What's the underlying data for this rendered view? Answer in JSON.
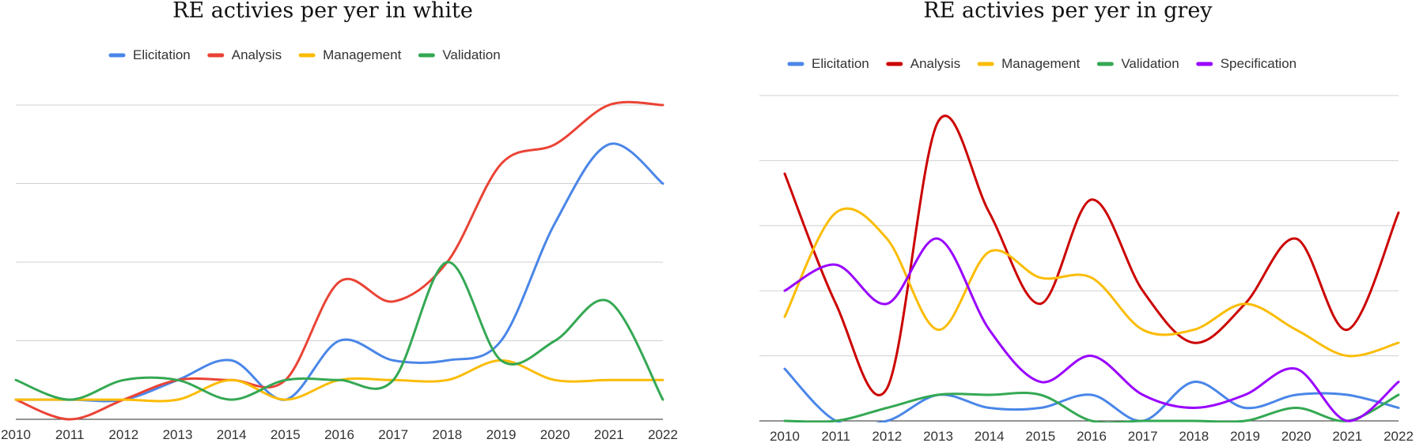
{
  "chart_data": [
    {
      "type": "line",
      "title": "RE activies per yer in white",
      "legend_position": "top",
      "grid": true,
      "categories": [
        "2010",
        "2011",
        "2012",
        "2013",
        "2014",
        "2015",
        "2016",
        "2017",
        "2018",
        "2019",
        "2020",
        "2021",
        "2022"
      ],
      "ylim": [
        0,
        40
      ],
      "series": [
        {
          "name": "Elicitation",
          "color": "#4a86e8",
          "values": [
            2.5,
            2.5,
            2.5,
            5,
            7.5,
            2.5,
            10,
            7.5,
            7.5,
            10,
            25,
            35,
            30
          ]
        },
        {
          "name": "Analysis",
          "color": "#ea4335",
          "values": [
            2.5,
            0,
            2.5,
            5,
            5,
            5,
            17.5,
            15,
            20,
            32.5,
            35,
            40,
            40
          ]
        },
        {
          "name": "Management",
          "color": "#fbbc04",
          "values": [
            2.5,
            2.5,
            2.5,
            2.5,
            5,
            2.5,
            5,
            5,
            5,
            7.5,
            5,
            5,
            5
          ]
        },
        {
          "name": "Validation",
          "color": "#34a853",
          "values": [
            5,
            2.5,
            5,
            5,
            2.5,
            5,
            5,
            5,
            20,
            7.5,
            10,
            15,
            2.5
          ]
        }
      ]
    },
    {
      "type": "line",
      "title": "RE activies per yer in grey",
      "legend_position": "top",
      "grid": true,
      "categories": [
        "2010",
        "2011",
        "2012",
        "2013",
        "2014",
        "2015",
        "2016",
        "2017",
        "2018",
        "2019",
        "2020",
        "2021",
        "2022"
      ],
      "ylim": [
        0,
        50
      ],
      "series": [
        {
          "name": "Elicitation",
          "color": "#4a86e8",
          "values": [
            8,
            0,
            0,
            4,
            2,
            2,
            4,
            0,
            6,
            2,
            4,
            4,
            2
          ]
        },
        {
          "name": "Analysis",
          "color": "#cc0000",
          "values": [
            38,
            18,
            5,
            46,
            32,
            18,
            34,
            20,
            12,
            18,
            28,
            14,
            32
          ]
        },
        {
          "name": "Management",
          "color": "#fbbc04",
          "values": [
            16,
            32,
            28,
            14,
            26,
            22,
            22,
            14,
            14,
            18,
            14,
            10,
            12
          ]
        },
        {
          "name": "Validation",
          "color": "#34a853",
          "values": [
            0,
            0,
            2,
            4,
            4,
            4,
            0,
            0,
            0,
            0,
            2,
            0,
            4
          ]
        },
        {
          "name": "Specification",
          "color": "#9900ff",
          "values": [
            20,
            24,
            18,
            28,
            14,
            6,
            10,
            4,
            2,
            4,
            8,
            0,
            6
          ]
        }
      ]
    }
  ]
}
